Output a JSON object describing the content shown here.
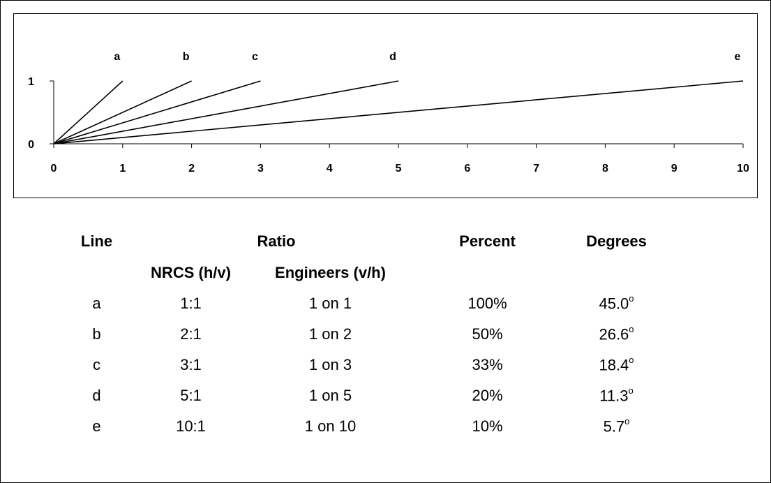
{
  "chart_data": {
    "type": "line",
    "x_ticks": [
      "0",
      "1",
      "2",
      "3",
      "4",
      "5",
      "6",
      "7",
      "8",
      "9",
      "10"
    ],
    "y_ticks": [
      "0",
      "1"
    ],
    "xlim": [
      0,
      10
    ],
    "ylim": [
      0,
      1
    ],
    "series": [
      {
        "name": "a",
        "x": [
          0,
          1
        ],
        "y": [
          0,
          1
        ]
      },
      {
        "name": "b",
        "x": [
          0,
          2
        ],
        "y": [
          0,
          1
        ]
      },
      {
        "name": "c",
        "x": [
          0,
          3
        ],
        "y": [
          0,
          1
        ]
      },
      {
        "name": "d",
        "x": [
          0,
          5
        ],
        "y": [
          0,
          1
        ]
      },
      {
        "name": "e",
        "x": [
          0,
          10
        ],
        "y": [
          0,
          1
        ]
      }
    ]
  },
  "table": {
    "headers": {
      "line": "Line",
      "ratio": "Ratio",
      "percent": "Percent",
      "degrees": "Degrees",
      "nrcs": "NRCS (h/v)",
      "engineers": "Engineers (v/h)"
    },
    "degree_symbol": "o",
    "rows": [
      {
        "line": "a",
        "nrcs": "1:1",
        "engineers": "1 on 1",
        "percent": "100%",
        "degrees": "45.0"
      },
      {
        "line": "b",
        "nrcs": "2:1",
        "engineers": "1 on 2",
        "percent": "50%",
        "degrees": "26.6"
      },
      {
        "line": "c",
        "nrcs": "3:1",
        "engineers": "1 on 3",
        "percent": "33%",
        "degrees": "18.4"
      },
      {
        "line": "d",
        "nrcs": "5:1",
        "engineers": "1 on 5",
        "percent": "20%",
        "degrees": "11.3"
      },
      {
        "line": "e",
        "nrcs": "10:1",
        "engineers": "1 on 10",
        "percent": "10%",
        "degrees": "5.7"
      }
    ]
  }
}
